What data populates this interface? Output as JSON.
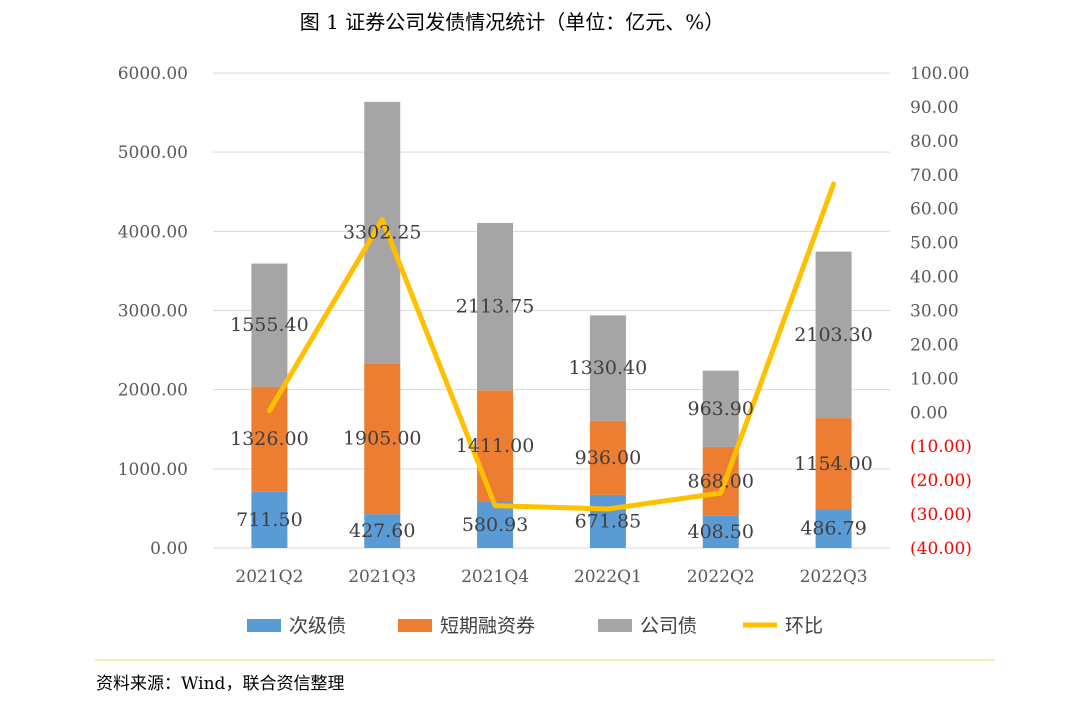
{
  "figure": {
    "title": "图 1    证券公司发债情况统计（单位：亿元、%）",
    "source": "资料来源：Wind，联合资信整理"
  },
  "colors": {
    "series_1": "#5b9bd5",
    "series_2": "#ed7d31",
    "series_3": "#a5a5a5",
    "line": "#ffc000",
    "axis_text": "#595959",
    "negative_tick": "#ff0000",
    "grid": "#d9d9d9",
    "divider": "#f2e6a0"
  },
  "chart_data": {
    "type": "bar",
    "stacked": true,
    "categories": [
      "2021Q2",
      "2021Q3",
      "2021Q4",
      "2022Q1",
      "2022Q2",
      "2022Q3"
    ],
    "series": [
      {
        "name": "次级债",
        "type": "bar",
        "axis": "left",
        "values": [
          711.5,
          427.6,
          580.93,
          671.85,
          408.5,
          486.79
        ],
        "labels": [
          "711.50",
          "427.60",
          "580.93",
          "671.85",
          "408.50",
          "486.79"
        ]
      },
      {
        "name": "短期融资券",
        "type": "bar",
        "axis": "left",
        "values": [
          1326.0,
          1905.0,
          1411.0,
          936.0,
          868.0,
          1154.0
        ],
        "labels": [
          "1326.00",
          "1905.00",
          "1411.00",
          "936.00",
          "868.00",
          "1154.00"
        ]
      },
      {
        "name": "公司债",
        "type": "bar",
        "axis": "left",
        "values": [
          1555.4,
          3302.25,
          2113.75,
          1330.4,
          963.9,
          2103.3
        ],
        "labels": [
          "1555.40",
          "3302.25",
          "2113.75",
          "1330.40",
          "963.90",
          "2103.30"
        ]
      },
      {
        "name": "环比",
        "type": "line",
        "axis": "right",
        "values": [
          0.5,
          56.8,
          -27.5,
          -28.5,
          -23.8,
          67.3
        ]
      }
    ],
    "ylim_left": [
      0,
      6000
    ],
    "yticks_left": [
      "0.00",
      "1000.00",
      "2000.00",
      "3000.00",
      "4000.00",
      "5000.00",
      "6000.00"
    ],
    "ylim_right": [
      -40,
      100
    ],
    "yticks_right": [
      "(40.00)",
      "(30.00)",
      "(20.00)",
      "(10.00)",
      "0.00",
      "10.00",
      "20.00",
      "30.00",
      "40.00",
      "50.00",
      "60.00",
      "70.00",
      "80.00",
      "90.00",
      "100.00"
    ],
    "grid": true,
    "legend_position": "bottom"
  }
}
